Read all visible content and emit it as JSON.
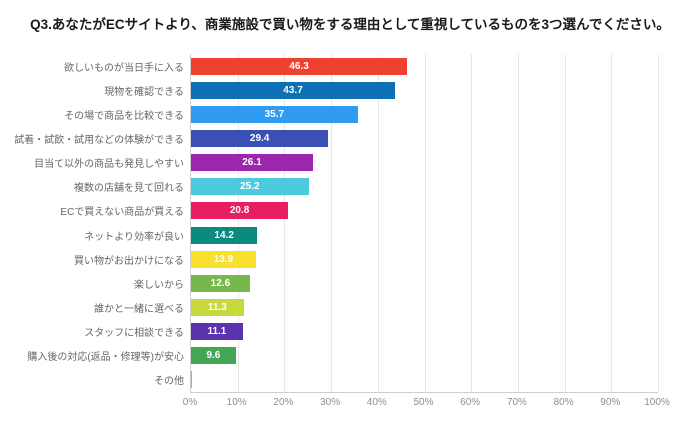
{
  "chart_data": {
    "type": "bar",
    "orientation": "horizontal",
    "title": "Q3.あなたがECサイトより、商業施設で買い物をする理由として重視しているものを3つ選んでください。",
    "categories": [
      "欲しいものが当日手に入る",
      "現物を確認できる",
      "その場で商品を比較できる",
      "試着・試飲・試用などの体験ができる",
      "目当て以外の商品も発見しやすい",
      "複数の店舗を見て回れる",
      "ECで買えない商品が買える",
      "ネットより効率が良い",
      "買い物がお出かけになる",
      "楽しいから",
      "誰かと一緒に選べる",
      "スタッフに相談できる",
      "購入後の対応(返品・修理等)が安心",
      "その他"
    ],
    "values": [
      46.3,
      43.7,
      35.7,
      29.4,
      26.1,
      25.2,
      20.8,
      14.2,
      13.9,
      12.6,
      11.3,
      11.1,
      9.6,
      0.3
    ],
    "value_labels": [
      "46.3",
      "43.7",
      "35.7",
      "29.4",
      "26.1",
      "25.2",
      "20.8",
      "14.2",
      "13.9",
      "12.6",
      "11.3",
      "11.1",
      "9.6",
      ""
    ],
    "bar_colors": [
      "#ef4130",
      "#0d6fb4",
      "#2f9bf1",
      "#3a50b4",
      "#9c27ad",
      "#4bcbdb",
      "#e81e60",
      "#0b8b7e",
      "#f8e02e",
      "#75b84b",
      "#c7d93b",
      "#5b33ac",
      "#42a655",
      "#e0a23e"
    ],
    "x_tick_labels": [
      "0%",
      "10%",
      "20%",
      "30%",
      "40%",
      "50%",
      "60%",
      "70%",
      "80%",
      "90%",
      "100%"
    ],
    "xlim": [
      0,
      100
    ],
    "grid": true,
    "legend": "none",
    "colors": {
      "title_text": "#1a1a1a",
      "category_text": "#666666",
      "tick_text": "#8f8f8f",
      "gridline": "#e9e9e9",
      "axis_line": "#cfcfcf",
      "value_text": "#ffffff",
      "background": "#ffffff"
    }
  }
}
